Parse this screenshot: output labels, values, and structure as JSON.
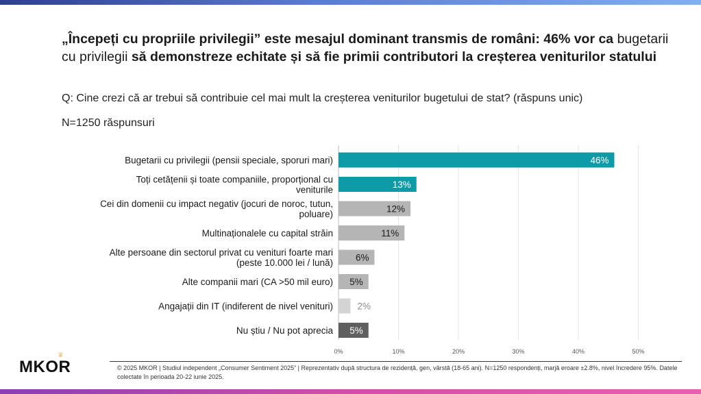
{
  "headline": {
    "part1": "„Începeți cu propriile privilegii” este mesajul dominant transmis de români: 46% vor ca",
    "part2": "bugetarii cu privilegii",
    "part3": "să demonstreze echitate și să fie primii contributori la creșterea veniturilor statului"
  },
  "question": "Q: Cine crezi că ar trebui să contribuie cel mai mult la creșterea veniturilor bugetului de stat? (răspuns unic)",
  "sample": "N=1250 răspunsuri",
  "chart_data": {
    "type": "bar",
    "orientation": "horizontal",
    "title": "",
    "xlabel": "",
    "ylabel": "",
    "xlim": [
      0,
      50
    ],
    "x_ticks": [
      "0%",
      "10%",
      "20%",
      "30%",
      "40%",
      "50%"
    ],
    "grid": true,
    "categories": [
      [
        "Bugetarii cu privilegii (pensii speciale, sporuri mari)"
      ],
      [
        "Toți cetățenii și toate companiile, proporțional cu",
        "veniturile"
      ],
      [
        "Cei din domenii cu impact negativ (jocuri de noroc, tutun,",
        "poluare)"
      ],
      [
        "Multinaționalele cu capital străin"
      ],
      [
        "Alte persoane din sectorul privat cu venituri foarte mari",
        "(peste 10.000 lei / lună)"
      ],
      [
        "Alte companii mari (CA >50 mil euro)"
      ],
      [
        "Angajații din IT (indiferent de nivel venituri)"
      ],
      [
        "Nu știu / Nu pot aprecia"
      ]
    ],
    "values": [
      46,
      13,
      12,
      11,
      6,
      5,
      2,
      5
    ],
    "value_labels": [
      "46%",
      "13%",
      "12%",
      "11%",
      "6%",
      "5%",
      "2%",
      "5%"
    ],
    "colors": [
      "#0f9aa8",
      "#0f9aa8",
      "#b5b5b5",
      "#b5b5b5",
      "#b5b5b5",
      "#b5b5b5",
      "#d4d4d4",
      "#5f5f5f"
    ],
    "label_colors": [
      "#ffffff",
      "#ffffff",
      "#1a1a1a",
      "#1a1a1a",
      "#1a1a1a",
      "#1a1a1a",
      "#8a8a8a",
      "#ffffff"
    ]
  },
  "logo": {
    "text": "MKOR"
  },
  "footer": "© 2025 MKOR | Studiul independent „Consumer Sentiment 2025” | Reprezentativ după structura de rezidență, gen, vârstă (18-65 ani). N=1250 respondenți, marjă eroare ±2.8%, nivel încredere 95%. Datele colectate în perioada 20-22 iunie 2025."
}
